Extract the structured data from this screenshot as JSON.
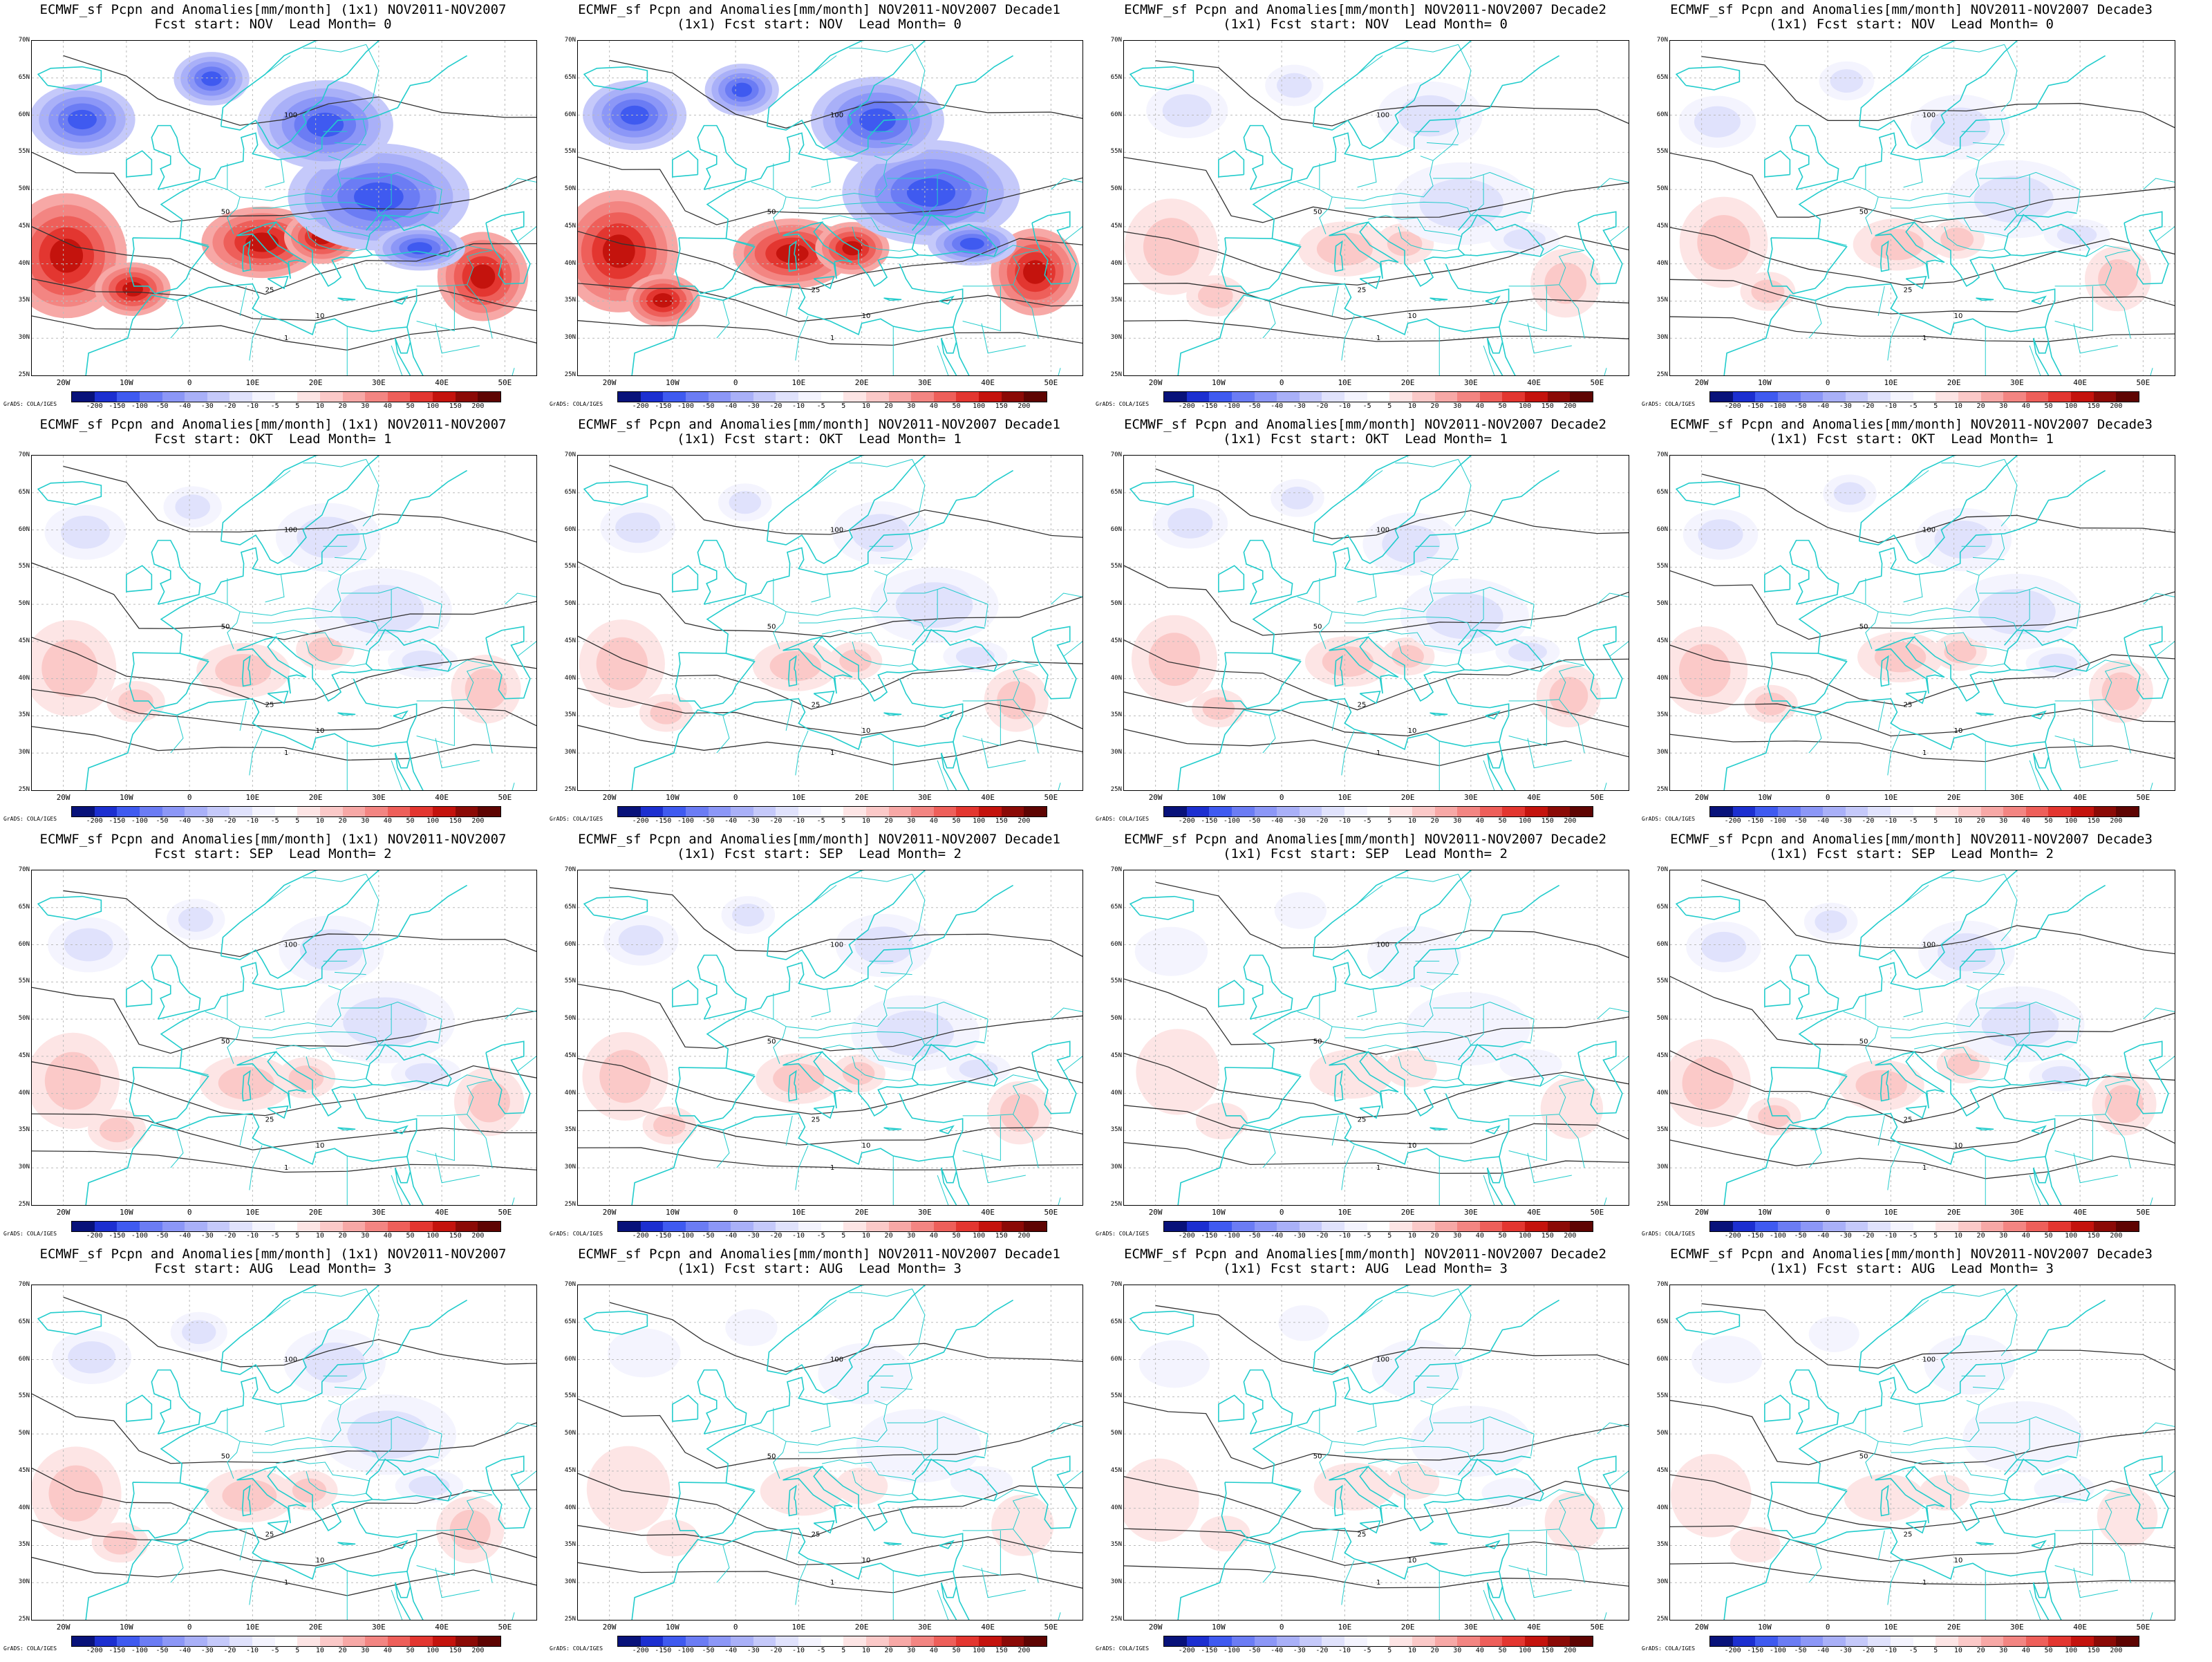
{
  "panels": [
    {
      "t1": "ECMWF_sf Pcpn and Anomalies[mm/month] (1x1) NOV2011-NOV2007",
      "t2": "Fcst start: NOV  Lead Month= 0",
      "intensity": 1.0
    },
    {
      "t1": "ECMWF_sf Pcpn and Anomalies[mm/month] NOV2011-NOV2007 Decade1",
      "t2": "(1x1) Fcst start: NOV  Lead Month= 0",
      "intensity": 0.95
    },
    {
      "t1": "ECMWF_sf Pcpn and Anomalies[mm/month] NOV2011-NOV2007 Decade2",
      "t2": "(1x1) Fcst start: NOV  Lead Month= 0",
      "intensity": 0.45
    },
    {
      "t1": "ECMWF_sf Pcpn and Anomalies[mm/month] NOV2011-NOV2007 Decade3",
      "t2": "(1x1) Fcst start: NOV  Lead Month= 0",
      "intensity": 0.35
    },
    {
      "t1": "ECMWF_sf Pcpn and Anomalies[mm/month] (1x1) NOV2011-NOV2007",
      "t2": "Fcst start: OKT  Lead Month= 1",
      "intensity": 0.45
    },
    {
      "t1": "ECMWF_sf Pcpn and Anomalies[mm/month] NOV2011-NOV2007 Decade1",
      "t2": "(1x1) Fcst start: OKT  Lead Month= 1",
      "intensity": 0.3
    },
    {
      "t1": "ECMWF_sf Pcpn and Anomalies[mm/month] NOV2011-NOV2007 Decade2",
      "t2": "(1x1) Fcst start: OKT  Lead Month= 1",
      "intensity": 0.3
    },
    {
      "t1": "ECMWF_sf Pcpn and Anomalies[mm/month] NOV2011-NOV2007 Decade3",
      "t2": "(1x1) Fcst start: OKT  Lead Month= 1",
      "intensity": 0.3
    },
    {
      "t1": "ECMWF_sf Pcpn and Anomalies[mm/month] (1x1) NOV2011-NOV2007",
      "t2": "Fcst start: SEP  Lead Month= 2",
      "intensity": 0.45
    },
    {
      "t1": "ECMWF_sf Pcpn and Anomalies[mm/month] NOV2011-NOV2007 Decade1",
      "t2": "(1x1) Fcst start: SEP  Lead Month= 2",
      "intensity": 0.3
    },
    {
      "t1": "ECMWF_sf Pcpn and Anomalies[mm/month] NOV2011-NOV2007 Decade2",
      "t2": "(1x1) Fcst start: SEP  Lead Month= 2",
      "intensity": 0.25
    },
    {
      "t1": "ECMWF_sf Pcpn and Anomalies[mm/month] NOV2011-NOV2007 Decade3",
      "t2": "(1x1) Fcst start: SEP  Lead Month= 2",
      "intensity": 0.3
    },
    {
      "t1": "ECMWF_sf Pcpn and Anomalies[mm/month] (1x1) NOV2011-NOV2007",
      "t2": "Fcst start: AUG  Lead Month= 3",
      "intensity": 0.4
    },
    {
      "t1": "ECMWF_sf Pcpn and Anomalies[mm/month] NOV2011-NOV2007 Decade1",
      "t2": "(1x1) Fcst start: AUG  Lead Month= 3",
      "intensity": 0.25
    },
    {
      "t1": "ECMWF_sf Pcpn and Anomalies[mm/month] NOV2011-NOV2007 Decade2",
      "t2": "(1x1) Fcst start: AUG  Lead Month= 3",
      "intensity": 0.2
    },
    {
      "t1": "ECMWF_sf Pcpn and Anomalies[mm/month] NOV2011-NOV2007 Decade3",
      "t2": "(1x1) Fcst start: AUG  Lead Month= 3",
      "intensity": 0.2
    }
  ],
  "lat_labels": [
    "70N",
    "65N",
    "60N",
    "55N",
    "50N",
    "45N",
    "40N",
    "35N",
    "30N",
    "25N"
  ],
  "lon_labels": [
    "20W",
    "10W",
    "0",
    "10E",
    "20E",
    "30E",
    "40E",
    "50E"
  ],
  "colorbar": {
    "labels": [
      "-200",
      "-150",
      "-100",
      "-50",
      "-40",
      "-30",
      "-20",
      "-10",
      "-5",
      "5",
      "10",
      "20",
      "30",
      "40",
      "50",
      "100",
      "150",
      "200"
    ],
    "colors": [
      "#08127a",
      "#1c2fd0",
      "#3f5af0",
      "#6b7cf4",
      "#8c97f7",
      "#a9b0f8",
      "#c5c9fa",
      "#e0e2fc",
      "#f4f4fe",
      "#ffffff",
      "#fde5e5",
      "#fbc9c8",
      "#f7a8a6",
      "#f38582",
      "#ee5f5a",
      "#e33630",
      "#c4130d",
      "#8b0a06",
      "#5e0402"
    ]
  },
  "credit": "GrADS: COLA/IGES",
  "colors": {
    "coast": "#22cccc",
    "contour": "#333333",
    "grid": "#bbbbbb"
  }
}
